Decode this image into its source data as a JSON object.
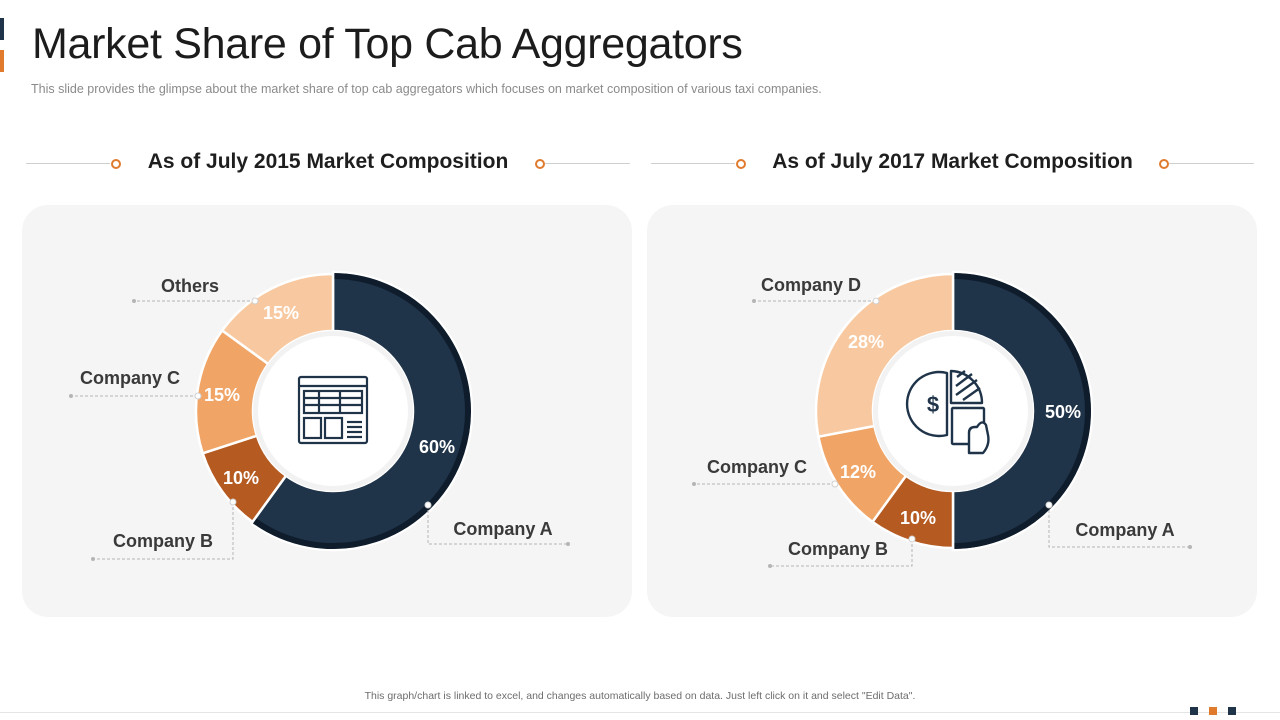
{
  "page": {
    "title": "Market Share of Top Cab Aggregators",
    "subtitle": "This slide provides  the glimpse about the market share of top cab aggregators  which focuses on market composition of various  taxi companies.",
    "footer_note": "This graph/chart is linked to excel, and changes automatically based on data.  Just left click on it and select \"Edit Data\"."
  },
  "colors": {
    "navy": "#1f3349",
    "orange": "#e07b2e",
    "company_a": "#1f3349",
    "company_b": "#b55a20",
    "company_c": "#f0a466",
    "others_light": "#f8c9a0"
  },
  "chart_data": [
    {
      "type": "pie",
      "variant": "donut",
      "title": "As of July 2015 Market Composition",
      "center_icon": "spreadsheet-table-icon",
      "slices": [
        {
          "label": "Company A",
          "value": 60,
          "value_label": "60%",
          "color": "#1f3349"
        },
        {
          "label": "Company B",
          "value": 10,
          "value_label": "10%",
          "color": "#b55a20"
        },
        {
          "label": "Company C",
          "value": 15,
          "value_label": "15%",
          "color": "#f0a466"
        },
        {
          "label": "Others",
          "value": 15,
          "value_label": "15%",
          "color": "#f8c9a0"
        }
      ]
    },
    {
      "type": "pie",
      "variant": "donut",
      "title": "As of July 2017 Market Composition",
      "center_icon": "pie-chart-hand-dollar-icon",
      "slices": [
        {
          "label": "Company A",
          "value": 50,
          "value_label": "50%",
          "color": "#1f3349"
        },
        {
          "label": "Company B",
          "value": 10,
          "value_label": "10%",
          "color": "#b55a20"
        },
        {
          "label": "Company C",
          "value": 12,
          "value_label": "12%",
          "color": "#f0a466"
        },
        {
          "label": "Company D",
          "value": 28,
          "value_label": "28%",
          "color": "#f8c9a0"
        }
      ]
    }
  ]
}
